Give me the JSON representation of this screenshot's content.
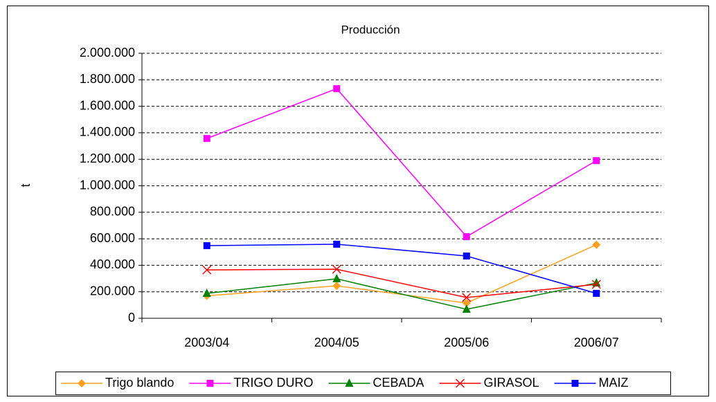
{
  "chart_data": {
    "type": "line",
    "title": "Producción",
    "y_label": "t",
    "categories": [
      "2003/04",
      "2004/05",
      "2005/06",
      "2006/07"
    ],
    "series": [
      {
        "name": "Trigo blando",
        "color": "#ffa020",
        "marker": "diamond",
        "values": [
          170000,
          245000,
          115000,
          555000
        ]
      },
      {
        "name": "TRIGO DURO",
        "color": "#ff00ff",
        "marker": "square",
        "values": [
          1357000,
          1733000,
          616000,
          1190000
        ]
      },
      {
        "name": "CEBADA",
        "color": "#008000",
        "marker": "triangle",
        "values": [
          188000,
          298000,
          68000,
          266000
        ]
      },
      {
        "name": "GIRASOL",
        "color": "#ff0000",
        "marker": "x",
        "values": [
          365000,
          370000,
          157000,
          256000
        ]
      },
      {
        "name": "MAIZ",
        "color": "#0000ff",
        "marker": "square",
        "values": [
          548000,
          559000,
          470000,
          188000
        ]
      }
    ],
    "ylim": [
      0,
      2000000
    ],
    "yticks": [
      0,
      {
        "value": 200000,
        "label": "200.000"
      },
      {
        "value": 400000,
        "label": "400.000"
      },
      {
        "value": 600000,
        "label": "600.000"
      },
      {
        "value": 800000,
        "label": "800.000"
      },
      {
        "value": 1000000,
        "label": "1.000.000"
      },
      {
        "value": 1200000,
        "label": "1.200.000"
      },
      {
        "value": 1400000,
        "label": "1.400.000"
      },
      {
        "value": 1600000,
        "label": "1.600.000"
      },
      {
        "value": 1800000,
        "label": "1.800.000"
      },
      {
        "value": 2000000,
        "label": "2.000.000"
      }
    ],
    "grid": true,
    "legend": "bottom"
  }
}
